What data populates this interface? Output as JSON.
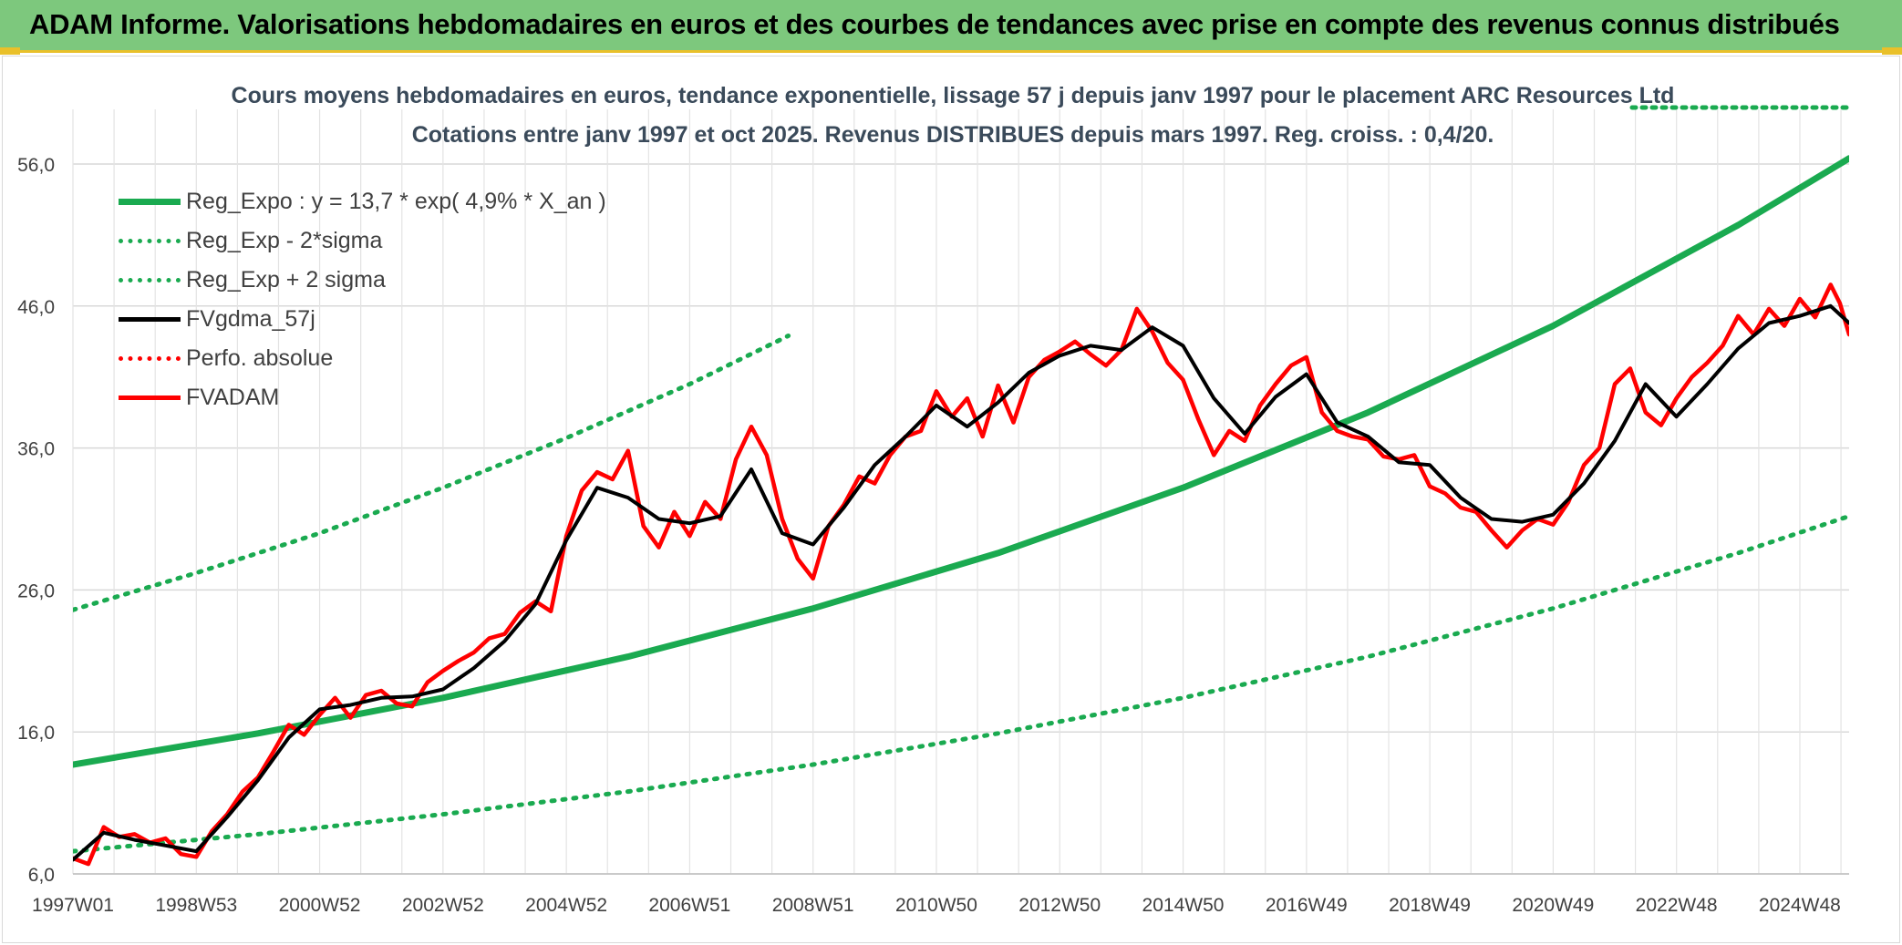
{
  "banner": {
    "title": "ADAM Informe. Valorisations hebdomadaires en euros et des courbes de tendances avec prise en compte des revenus connus distribués"
  },
  "chart_data": {
    "type": "line",
    "title": "Cours moyens hebdomadaires en euros, tendance exponentielle, lissage 57 j depuis janv 1997 pour le placement ARC Resources Ltd",
    "subtitle": "Cotations entre janv 1997 et oct 2025. Revenus DISTRIBUES depuis mars 1997. Reg. croiss. : 0,4/20.",
    "xlabel": "",
    "ylabel": "",
    "x_range": [
      1997.0,
      2025.8
    ],
    "ylim": [
      6,
      56
    ],
    "y_ticks": [
      "6,0",
      "16,0",
      "26,0",
      "36,0",
      "46,0",
      "56,0"
    ],
    "y_tick_values": [
      6,
      16,
      26,
      36,
      46,
      56
    ],
    "x_ticks": [
      "1997W01",
      "1998W53",
      "2000W52",
      "2002W52",
      "2004W52",
      "2006W51",
      "2008W51",
      "2010W50",
      "2012W50",
      "2014W50",
      "2016W49",
      "2018W49",
      "2020W49",
      "2022W48",
      "2024W48"
    ],
    "x_tick_values": [
      1997.0,
      1999.0,
      2001.0,
      2003.0,
      2005.0,
      2007.0,
      2009.0,
      2011.0,
      2013.0,
      2015.0,
      2017.0,
      2019.0,
      2021.0,
      2023.0,
      2025.0
    ],
    "grid": true,
    "legend_position": "top-left",
    "colors": {
      "reg": "#1aaa50",
      "sigma": "#1aaa50",
      "fvgdma": "#000000",
      "perfo": "#ff0000",
      "fvadam": "#ff0000"
    },
    "series": [
      {
        "name": "Reg_Expo : y = 13,7 * exp( 4,9% *  X_an )",
        "style": "solid-thick",
        "x": [
          1997.0,
          2000.0,
          2003.0,
          2006.0,
          2009.0,
          2012.0,
          2015.0,
          2018.0,
          2021.0,
          2024.0,
          2025.8
        ],
        "values": [
          13.7,
          15.9,
          18.4,
          21.3,
          24.7,
          28.6,
          33.2,
          38.5,
          44.6,
          51.7,
          56.4
        ]
      },
      {
        "name": "Reg_Exp - 2*sigma",
        "style": "dotted",
        "x": [
          1997.0,
          2000.0,
          2003.0,
          2006.0,
          2009.0,
          2012.0,
          2015.0,
          2018.0,
          2021.0,
          2024.0,
          2025.8
        ],
        "values": [
          7.6,
          8.8,
          10.2,
          11.8,
          13.7,
          15.9,
          18.4,
          21.3,
          24.7,
          28.6,
          31.2
        ]
      },
      {
        "name": "Reg_Exp + 2 sigma",
        "style": "dotted",
        "x": [
          1997.0,
          1999.0,
          2001.0,
          2003.0,
          2005.0,
          2007.0,
          2008.6
        ],
        "values": [
          24.6,
          27.2,
          30.0,
          33.2,
          36.7,
          40.5,
          43.9
        ]
      },
      {
        "name": "FVgdma_57j",
        "style": "solid",
        "x": [
          1997.0,
          1997.5,
          1998.0,
          1998.5,
          1999.0,
          1999.5,
          2000.0,
          2000.5,
          2001.0,
          2001.5,
          2002.0,
          2002.5,
          2003.0,
          2003.5,
          2004.0,
          2004.5,
          2005.0,
          2005.5,
          2006.0,
          2006.5,
          2007.0,
          2007.5,
          2008.0,
          2008.5,
          2009.0,
          2009.5,
          2010.0,
          2010.5,
          2011.0,
          2011.5,
          2012.0,
          2012.5,
          2013.0,
          2013.5,
          2014.0,
          2014.5,
          2015.0,
          2015.5,
          2016.0,
          2016.5,
          2017.0,
          2017.5,
          2018.0,
          2018.5,
          2019.0,
          2019.5,
          2020.0,
          2020.5,
          2021.0,
          2021.5,
          2022.0,
          2022.5,
          2023.0,
          2023.5,
          2024.0,
          2024.5,
          2025.0,
          2025.5,
          2025.8
        ],
        "values": [
          7.0,
          8.9,
          8.4,
          8.0,
          7.6,
          10.0,
          12.6,
          15.6,
          17.6,
          17.9,
          18.4,
          18.5,
          19.0,
          20.5,
          22.4,
          25.0,
          29.5,
          33.2,
          32.5,
          31.0,
          30.7,
          31.2,
          34.5,
          30.0,
          29.2,
          31.8,
          34.8,
          36.8,
          39.0,
          37.5,
          39.2,
          41.3,
          42.5,
          43.2,
          42.9,
          44.5,
          43.2,
          39.5,
          37.0,
          39.6,
          41.2,
          37.8,
          36.8,
          35.0,
          34.8,
          32.5,
          31.0,
          30.8,
          31.3,
          33.5,
          36.5,
          40.5,
          38.2,
          40.5,
          43.0,
          44.8,
          45.3,
          46.0,
          44.8
        ]
      },
      {
        "name": "Perfo. absolue",
        "style": "dotted",
        "x": [],
        "values": []
      },
      {
        "name": "FVADAM",
        "style": "solid",
        "x": [
          1997.0,
          1997.25,
          1997.5,
          1997.75,
          1998.0,
          1998.25,
          1998.5,
          1998.75,
          1999.0,
          1999.25,
          1999.5,
          1999.75,
          2000.0,
          2000.25,
          2000.5,
          2000.75,
          2001.0,
          2001.25,
          2001.5,
          2001.75,
          2002.0,
          2002.25,
          2002.5,
          2002.75,
          2003.0,
          2003.25,
          2003.5,
          2003.75,
          2004.0,
          2004.25,
          2004.5,
          2004.75,
          2005.0,
          2005.25,
          2005.5,
          2005.75,
          2006.0,
          2006.25,
          2006.5,
          2006.75,
          2007.0,
          2007.25,
          2007.5,
          2007.75,
          2008.0,
          2008.25,
          2008.5,
          2008.75,
          2009.0,
          2009.25,
          2009.5,
          2009.75,
          2010.0,
          2010.25,
          2010.5,
          2010.75,
          2011.0,
          2011.25,
          2011.5,
          2011.75,
          2012.0,
          2012.25,
          2012.5,
          2012.75,
          2013.0,
          2013.25,
          2013.5,
          2013.75,
          2014.0,
          2014.25,
          2014.5,
          2014.75,
          2015.0,
          2015.25,
          2015.5,
          2015.75,
          2016.0,
          2016.25,
          2016.5,
          2016.75,
          2017.0,
          2017.25,
          2017.5,
          2017.75,
          2018.0,
          2018.25,
          2018.5,
          2018.75,
          2019.0,
          2019.25,
          2019.5,
          2019.75,
          2020.0,
          2020.25,
          2020.5,
          2020.75,
          2021.0,
          2021.25,
          2021.5,
          2021.75,
          2022.0,
          2022.25,
          2022.5,
          2022.75,
          2023.0,
          2023.25,
          2023.5,
          2023.75,
          2024.0,
          2024.25,
          2024.5,
          2024.75,
          2025.0,
          2025.25,
          2025.5,
          2025.65,
          2025.8
        ],
        "values": [
          7.1,
          6.7,
          9.3,
          8.6,
          8.8,
          8.2,
          8.5,
          7.4,
          7.2,
          9.0,
          10.2,
          11.8,
          12.8,
          14.6,
          16.5,
          15.8,
          17.2,
          18.4,
          17.0,
          18.6,
          18.9,
          18.0,
          17.8,
          19.5,
          20.3,
          21.0,
          21.6,
          22.6,
          22.9,
          24.4,
          25.2,
          24.5,
          29.8,
          33.0,
          34.3,
          33.8,
          35.8,
          30.5,
          29.0,
          31.5,
          29.8,
          32.2,
          31.0,
          35.2,
          37.5,
          35.5,
          31.0,
          28.2,
          26.8,
          30.5,
          32.0,
          34.0,
          33.5,
          35.5,
          36.8,
          37.2,
          40.0,
          38.2,
          39.5,
          36.8,
          40.4,
          37.8,
          41.0,
          42.2,
          42.8,
          43.5,
          42.6,
          41.8,
          42.9,
          45.8,
          44.2,
          42.0,
          40.8,
          38.0,
          35.5,
          37.2,
          36.5,
          39.0,
          40.5,
          41.8,
          42.4,
          38.5,
          37.2,
          36.8,
          36.6,
          35.4,
          35.2,
          35.5,
          33.3,
          32.8,
          31.8,
          31.5,
          30.2,
          29.0,
          30.2,
          31.0,
          30.6,
          32.2,
          34.8,
          36.0,
          40.5,
          41.6,
          38.5,
          37.6,
          39.5,
          41.0,
          42.0,
          43.2,
          45.3,
          44.0,
          45.8,
          44.6,
          46.5,
          45.2,
          47.5,
          46.2,
          44.0
        ]
      }
    ]
  }
}
